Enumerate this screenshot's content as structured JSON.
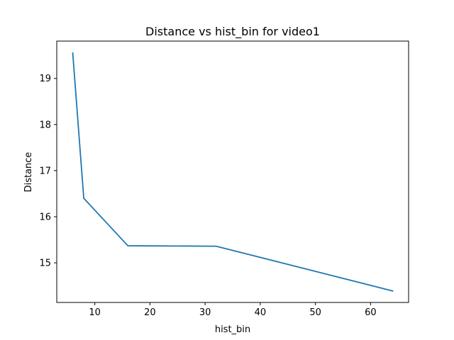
{
  "chart_data": {
    "type": "line",
    "title": "Distance vs hist_bin for video1",
    "xlabel": "hist_bin",
    "ylabel": "Distance",
    "xlim": [
      3.1,
      66.9
    ],
    "ylim": [
      14.14,
      19.81
    ],
    "xticks": [
      10,
      20,
      30,
      40,
      50,
      60
    ],
    "yticks": [
      15,
      16,
      17,
      18,
      19
    ],
    "grid": false,
    "series": [
      {
        "color": "#1f77b4",
        "x": [
          6,
          8,
          16,
          32,
          64
        ],
        "y": [
          19.55,
          16.4,
          15.37,
          15.36,
          14.39
        ]
      }
    ]
  }
}
